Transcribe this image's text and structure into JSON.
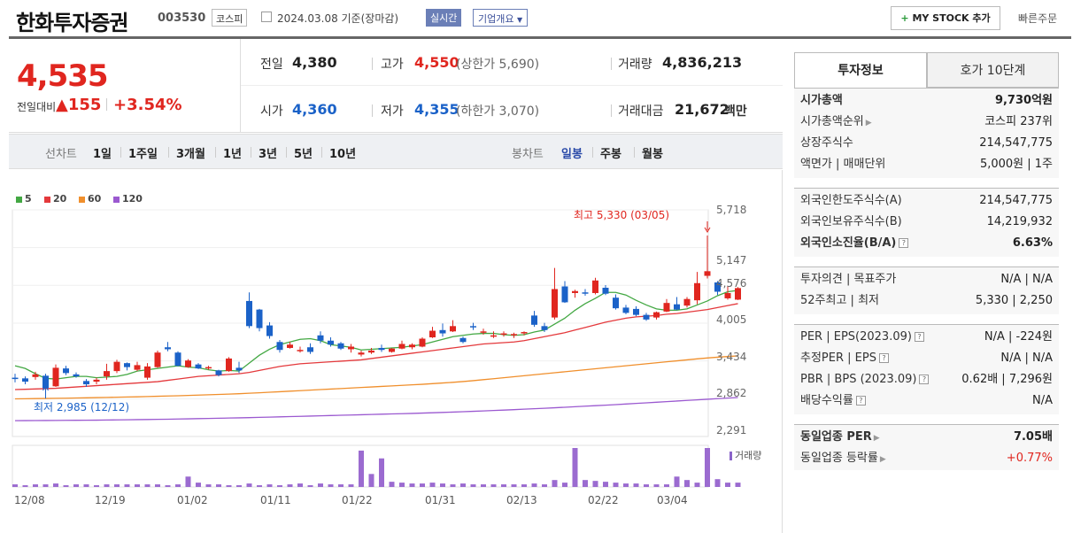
{
  "header": {
    "name": "한화투자증권",
    "code": "003530",
    "market": "코스피",
    "date_label": "2024.03.08 기준(장마감)",
    "live_btn": "실시간",
    "info_btn": "기업개요",
    "mystock_plus": "+",
    "mystock": "MY STOCK 추가",
    "quick_order": "빠른주문"
  },
  "price": {
    "current": "4,535",
    "change_label": "전일대비",
    "change": "▲155",
    "change_pct": "+3.54%"
  },
  "stats": {
    "prev_label": "전일",
    "prev": "4,380",
    "high_label": "고가",
    "high": "4,550",
    "upper_limit": "(상한가 5,690)",
    "volume_label": "거래량",
    "volume": "4,836,213",
    "open_label": "시가",
    "open": "4,360",
    "low_label": "저가",
    "low": "4,355",
    "lower_limit": "(하한가 3,070)",
    "amount_label": "거래대금",
    "amount": "21,672",
    "amount_unit": "백만"
  },
  "periods": {
    "line_label": "선차트",
    "line": [
      "1일",
      "1주일",
      "3개월",
      "1년",
      "3년",
      "5년",
      "10년"
    ],
    "candle_label": "봉차트",
    "candle": [
      "일봉",
      "주봉",
      "월봉"
    ],
    "selected": "일봉"
  },
  "legend": [
    "5",
    "20",
    "60",
    "120"
  ],
  "legend_colors": [
    "#43a843",
    "#e4393c",
    "#f08f2c",
    "#9b59d0"
  ],
  "volume_legend": "거래량",
  "chart_data": {
    "type": "candlestick",
    "y_ticks": [
      "5,718",
      "5,147",
      "4,576",
      "4,005",
      "3,434",
      "2,862",
      "2,291"
    ],
    "ylim": [
      2291,
      5718
    ],
    "x_ticks": [
      "12/08",
      "12/19",
      "01/02",
      "01/11",
      "01/22",
      "01/31",
      "02/13",
      "02/22",
      "03/04"
    ],
    "annotation_high": "최고 5,330 (03/05)",
    "annotation_low": "최저 2,985 (12/12)",
    "candles": [
      [
        3180,
        3240,
        3110,
        3160
      ],
      [
        3170,
        3200,
        3080,
        3120
      ],
      [
        3190,
        3270,
        3150,
        3230
      ],
      [
        3210,
        3240,
        2985,
        3020
      ],
      [
        3050,
        3380,
        3040,
        3330
      ],
      [
        3320,
        3360,
        3220,
        3250
      ],
      [
        3230,
        3260,
        3180,
        3200
      ],
      [
        3130,
        3160,
        3040,
        3080
      ],
      [
        3120,
        3180,
        3080,
        3150
      ],
      [
        3200,
        3390,
        3150,
        3280
      ],
      [
        3280,
        3450,
        3250,
        3420
      ],
      [
        3400,
        3410,
        3290,
        3340
      ],
      [
        3300,
        3420,
        3280,
        3370
      ],
      [
        3180,
        3400,
        3150,
        3350
      ],
      [
        3340,
        3590,
        3330,
        3560
      ],
      [
        3640,
        3720,
        3580,
        3610
      ],
      [
        3560,
        3580,
        3350,
        3360
      ],
      [
        3340,
        3460,
        3330,
        3440
      ],
      [
        3380,
        3400,
        3310,
        3320
      ],
      [
        3330,
        3360,
        3300,
        3340
      ],
      [
        3290,
        3300,
        3200,
        3220
      ],
      [
        3280,
        3490,
        3270,
        3470
      ],
      [
        3330,
        3420,
        3250,
        3290
      ],
      [
        4340,
        4470,
        3930,
        3960
      ],
      [
        4210,
        4220,
        3880,
        3930
      ],
      [
        3970,
        4020,
        3770,
        3810
      ],
      [
        3720,
        3750,
        3560,
        3600
      ],
      [
        3630,
        3720,
        3620,
        3680
      ],
      [
        3590,
        3650,
        3560,
        3600
      ],
      [
        3640,
        3700,
        3540,
        3570
      ],
      [
        3820,
        3880,
        3700,
        3740
      ],
      [
        3740,
        3790,
        3650,
        3680
      ],
      [
        3700,
        3720,
        3600,
        3620
      ],
      [
        3610,
        3690,
        3560,
        3650
      ],
      [
        3530,
        3590,
        3500,
        3560
      ],
      [
        3560,
        3630,
        3540,
        3590
      ],
      [
        3630,
        3680,
        3570,
        3600
      ],
      [
        3570,
        3630,
        3560,
        3620
      ],
      [
        3620,
        3740,
        3610,
        3690
      ],
      [
        3640,
        3700,
        3610,
        3680
      ],
      [
        3650,
        3790,
        3640,
        3770
      ],
      [
        3790,
        3950,
        3780,
        3890
      ],
      [
        3900,
        4000,
        3800,
        3850
      ],
      [
        3880,
        4050,
        3870,
        3960
      ],
      [
        3780,
        3800,
        3700,
        3720
      ],
      [
        3960,
        4010,
        3900,
        3950
      ],
      [
        3860,
        3920,
        3830,
        3880
      ],
      [
        3810,
        3880,
        3780,
        3820
      ],
      [
        3830,
        3880,
        3800,
        3850
      ],
      [
        3820,
        3860,
        3780,
        3840
      ],
      [
        3850,
        3880,
        3820,
        3870
      ],
      [
        4120,
        4190,
        3950,
        3980
      ],
      [
        3960,
        4010,
        3870,
        3900
      ],
      [
        4090,
        4840,
        4060,
        4520
      ],
      [
        4560,
        4640,
        4310,
        4320
      ],
      [
        4460,
        4510,
        4390,
        4490
      ],
      [
        4470,
        4520,
        4420,
        4450
      ],
      [
        4460,
        4690,
        4440,
        4650
      ],
      [
        4540,
        4580,
        4430,
        4450
      ],
      [
        4390,
        4440,
        4210,
        4230
      ],
      [
        4240,
        4280,
        4140,
        4160
      ],
      [
        4220,
        4260,
        4110,
        4130
      ],
      [
        4130,
        4160,
        4040,
        4060
      ],
      [
        4090,
        4180,
        4060,
        4170
      ],
      [
        4180,
        4370,
        4170,
        4310
      ],
      [
        4290,
        4400,
        4200,
        4210
      ],
      [
        4270,
        4400,
        4240,
        4370
      ],
      [
        4350,
        4780,
        4290,
        4610
      ],
      [
        4720,
        5330,
        4680,
        4790
      ],
      [
        4620,
        4640,
        4430,
        4480
      ],
      [
        4380,
        4560,
        4360,
        4460
      ],
      [
        4360,
        4550,
        4355,
        4535
      ]
    ],
    "ma5": [
      3360,
      3320,
      3240,
      3170,
      3160,
      3180,
      3200,
      3200,
      3180,
      3190,
      3200,
      3230,
      3280,
      3300,
      3320,
      3340,
      3360,
      3340,
      3330,
      3300,
      3280,
      3290,
      3280,
      3400,
      3520,
      3610,
      3680,
      3720,
      3760,
      3770,
      3740,
      3680,
      3660,
      3640,
      3600,
      3610,
      3620,
      3630,
      3640,
      3660,
      3680,
      3720,
      3760,
      3800,
      3820,
      3840,
      3850,
      3850,
      3830,
      3820,
      3830,
      3870,
      3900,
      3990,
      4080,
      4200,
      4300,
      4380,
      4470,
      4470,
      4430,
      4350,
      4280,
      4220,
      4200,
      4200,
      4220,
      4280,
      4340,
      4420,
      4480,
      4500
    ],
    "ma20": [
      3000,
      3005,
      3010,
      3015,
      3020,
      3030,
      3040,
      3050,
      3060,
      3070,
      3080,
      3090,
      3100,
      3110,
      3120,
      3140,
      3160,
      3180,
      3200,
      3210,
      3220,
      3230,
      3240,
      3260,
      3290,
      3320,
      3350,
      3370,
      3390,
      3400,
      3410,
      3420,
      3430,
      3440,
      3450,
      3470,
      3490,
      3510,
      3530,
      3550,
      3570,
      3590,
      3610,
      3630,
      3650,
      3670,
      3690,
      3700,
      3710,
      3720,
      3740,
      3770,
      3800,
      3830,
      3860,
      3900,
      3940,
      3980,
      4020,
      4050,
      4080,
      4100,
      4110,
      4120,
      4140,
      4150,
      4170,
      4190,
      4210,
      4240,
      4270,
      4300
    ],
    "ma60": [
      2860,
      2862,
      2864,
      2866,
      2868,
      2870,
      2873,
      2876,
      2879,
      2882,
      2885,
      2888,
      2891,
      2895,
      2899,
      2903,
      2907,
      2912,
      2917,
      2922,
      2927,
      2932,
      2938,
      2945,
      2952,
      2960,
      2968,
      2976,
      2984,
      2992,
      3000,
      3008,
      3016,
      3024,
      3032,
      3040,
      3048,
      3056,
      3064,
      3072,
      3080,
      3090,
      3100,
      3110,
      3122,
      3135,
      3150,
      3165,
      3180,
      3195,
      3210,
      3225,
      3240,
      3255,
      3270,
      3285,
      3300,
      3315,
      3330,
      3345,
      3360,
      3375,
      3390,
      3405,
      3420,
      3435,
      3450,
      3465,
      3478,
      3490,
      3500,
      3510
    ],
    "ma120": [
      2530,
      2531,
      2532,
      2533,
      2534,
      2535,
      2536,
      2537,
      2538,
      2540,
      2542,
      2544,
      2546,
      2548,
      2550,
      2552,
      2555,
      2558,
      2561,
      2564,
      2567,
      2570,
      2573,
      2576,
      2580,
      2584,
      2588,
      2592,
      2596,
      2600,
      2604,
      2608,
      2612,
      2616,
      2620,
      2624,
      2628,
      2632,
      2636,
      2640,
      2645,
      2650,
      2655,
      2660,
      2666,
      2672,
      2678,
      2684,
      2690,
      2697,
      2704,
      2711,
      2718,
      2725,
      2733,
      2741,
      2749,
      2757,
      2765,
      2773,
      2782,
      2791,
      2800,
      2809,
      2818,
      2827,
      2836,
      2845,
      2854,
      2863,
      2872,
      2880
    ],
    "volume": [
      3,
      2,
      3,
      3,
      4,
      2,
      3,
      3,
      2,
      3,
      3,
      3,
      3,
      3,
      3,
      2,
      3,
      12,
      5,
      3,
      3,
      2,
      2,
      4,
      2,
      3,
      2,
      3,
      4,
      2,
      4,
      3,
      3,
      3,
      42,
      15,
      33,
      6,
      5,
      4,
      4,
      5,
      4,
      3,
      4,
      3,
      3,
      3,
      3,
      3,
      3,
      4,
      3,
      8,
      5,
      45,
      8,
      7,
      6,
      5,
      4,
      4,
      3,
      3,
      3,
      12,
      8,
      5,
      45,
      9,
      5,
      5
    ]
  },
  "tabs": [
    "투자정보",
    "호가 10단계"
  ],
  "panel": {
    "market_cap_label": "시가총액",
    "market_cap": "9,730억원",
    "market_cap_rank_label": "시가총액순위",
    "market_cap_rank": "코스피 237위",
    "shares_label": "상장주식수",
    "shares": "214,547,775",
    "par_label": "액면가 | 매매단위",
    "par": "5,000원 | 1주",
    "foreign_limit_label": "외국인한도주식수(A)",
    "foreign_limit": "214,547,775",
    "foreign_hold_label": "외국인보유주식수(B)",
    "foreign_hold": "14,219,932",
    "foreign_ratio_label": "외국인소진율(B/A)",
    "foreign_ratio": "6.63%",
    "opinion_label": "투자의견 | 목표주가",
    "opinion": "N/A | N/A",
    "w52_label": "52주최고 | 최저",
    "w52": "5,330 | 2,250",
    "per_label": "PER | EPS(2023.09)",
    "per": "N/A | -224원",
    "est_per_label": "추정PER | EPS",
    "est_per": "N/A | N/A",
    "pbr_label": "PBR | BPS (2023.09)",
    "pbr": "0.62배 | 7,296원",
    "div_label": "배당수익률",
    "div": "N/A",
    "sector_per_label": "동일업종 PER",
    "sector_per": "7.05배",
    "sector_rate_label": "동일업종 등락률",
    "sector_rate": "+0.77%"
  }
}
